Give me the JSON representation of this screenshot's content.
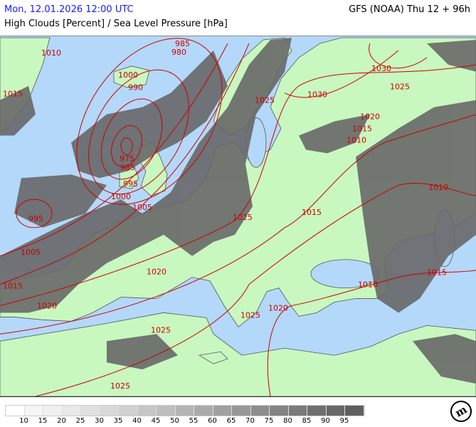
{
  "header": {
    "datetime": "Mon, 12.01.2026 12:00 UTC",
    "model": "GFS (NOAA) Thu 12 + 96h",
    "subtitle": "High Clouds [Percent] / Sea Level Pressure [hPa]"
  },
  "colors": {
    "land": "#c8f8c0",
    "sea": "#b4d8fa",
    "isobar": "#cc0000",
    "cloud": "#686868",
    "border": "#555555"
  },
  "isobar_labels": [
    "1010",
    "985",
    "980",
    "1000",
    "990",
    "1015",
    "1025",
    "1030",
    "1030",
    "1025",
    "1020",
    "1015",
    "1010",
    "975",
    "985",
    "995",
    "1000",
    "1005",
    "995",
    "1025",
    "1015",
    "1010",
    "1005",
    "1020",
    "1015",
    "1010",
    "1015",
    "1020",
    "1020",
    "1025",
    "1025",
    "1025"
  ],
  "legend": {
    "unit": "Percent",
    "labels": [
      "10",
      "15",
      "20",
      "25",
      "30",
      "35",
      "40",
      "45",
      "50",
      "55",
      "60",
      "65",
      "70",
      "75",
      "80",
      "85",
      "90",
      "95"
    ],
    "colors": [
      "#ffffff",
      "#f5f5f5",
      "#f0f0f0",
      "#e8e8e8",
      "#e0e0e0",
      "#d8d8d8",
      "#d0d0d0",
      "#c6c6c6",
      "#bebebe",
      "#b4b4b4",
      "#aaaaaa",
      "#a0a0a0",
      "#979797",
      "#8d8d8d",
      "#848484",
      "#7a7a7a",
      "#707070",
      "#686868",
      "#5f5f5f"
    ]
  },
  "logo": {
    "text": "m"
  }
}
